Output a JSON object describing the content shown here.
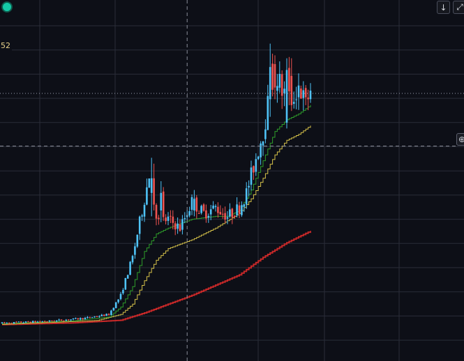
{
  "ui": {
    "price_label": "52",
    "scroll_icon": "arrow-down-icon",
    "expand_icon": "expand-icon",
    "zoom_icon": "zoom-in-icon",
    "status_icon": "status-dot-icon"
  },
  "colors": {
    "background": "#0d0f17",
    "grid": "#2a2d38",
    "up_candle": "#4fc3f7",
    "down_candle": "#ef5350",
    "ma_fast": "#2e9d2a",
    "ma_mid": "#d6c24a",
    "ma_slow": "#c62828",
    "crosshair": "#8a8d99",
    "price_line": "#9aa0b0"
  },
  "chart_data": {
    "type": "candlestick",
    "y_scale": "relative",
    "ylim": [
      0,
      100
    ],
    "xlim": [
      0,
      130
    ],
    "grid": true,
    "price_line_level": 80,
    "crosshair": {
      "x_index": 78,
      "y_level": 62
    },
    "anchors": [
      [
        0,
        1.5
      ],
      [
        20,
        2.2
      ],
      [
        35,
        3.2
      ],
      [
        45,
        4.5
      ],
      [
        50,
        11
      ],
      [
        55,
        24
      ],
      [
        58,
        36
      ],
      [
        62,
        52
      ],
      [
        63,
        45
      ],
      [
        66,
        36
      ],
      [
        70,
        37
      ],
      [
        75,
        34
      ],
      [
        80,
        43
      ],
      [
        85,
        39
      ],
      [
        90,
        41
      ],
      [
        95,
        38
      ],
      [
        100,
        41
      ],
      [
        103,
        46
      ],
      [
        106,
        55
      ],
      [
        110,
        67
      ],
      [
        113,
        80
      ],
      [
        115,
        88
      ],
      [
        118,
        81
      ],
      [
        122,
        77
      ],
      [
        125,
        83
      ],
      [
        128,
        76
      ],
      [
        130,
        82
      ]
    ],
    "ma_fast_anchors": [
      [
        0,
        1.3
      ],
      [
        30,
        2.3
      ],
      [
        45,
        3.6
      ],
      [
        50,
        7
      ],
      [
        55,
        14
      ],
      [
        60,
        26
      ],
      [
        65,
        32
      ],
      [
        70,
        34
      ],
      [
        80,
        37
      ],
      [
        90,
        38
      ],
      [
        95,
        38
      ],
      [
        100,
        40
      ],
      [
        105,
        47
      ],
      [
        110,
        57
      ],
      [
        115,
        67
      ],
      [
        120,
        71
      ],
      [
        125,
        73
      ],
      [
        130,
        76
      ]
    ],
    "ma_mid_anchors": [
      [
        0,
        1.1
      ],
      [
        40,
        2.4
      ],
      [
        50,
        4.5
      ],
      [
        55,
        8
      ],
      [
        60,
        16
      ],
      [
        65,
        23
      ],
      [
        70,
        27
      ],
      [
        80,
        30
      ],
      [
        90,
        34
      ],
      [
        100,
        39
      ],
      [
        105,
        44
      ],
      [
        110,
        51
      ],
      [
        115,
        59
      ],
      [
        120,
        64
      ],
      [
        125,
        66
      ],
      [
        130,
        69
      ]
    ],
    "ma_slow_anchors": [
      [
        0,
        1.0
      ],
      [
        30,
        1.6
      ],
      [
        50,
        2.5
      ],
      [
        60,
        5
      ],
      [
        70,
        8
      ],
      [
        80,
        11
      ],
      [
        100,
        18
      ],
      [
        110,
        24
      ],
      [
        120,
        29
      ],
      [
        130,
        33
      ]
    ],
    "candles": [
      {
        "i": 63,
        "o": 46,
        "h": 58,
        "l": 38,
        "c": 51
      },
      {
        "i": 64,
        "o": 51,
        "h": 56,
        "l": 40,
        "c": 42
      },
      {
        "i": 67,
        "o": 40,
        "h": 50,
        "l": 36,
        "c": 46
      },
      {
        "i": 81,
        "o": 40,
        "h": 47,
        "l": 38,
        "c": 44
      },
      {
        "i": 113,
        "o": 78,
        "h": 97,
        "l": 72,
        "c": 89
      },
      {
        "i": 115,
        "o": 90,
        "h": 93,
        "l": 78,
        "c": 82
      },
      {
        "i": 120,
        "o": 70,
        "h": 92,
        "l": 68,
        "c": 88
      },
      {
        "i": 122,
        "o": 86,
        "h": 92,
        "l": 74,
        "c": 76
      }
    ]
  }
}
